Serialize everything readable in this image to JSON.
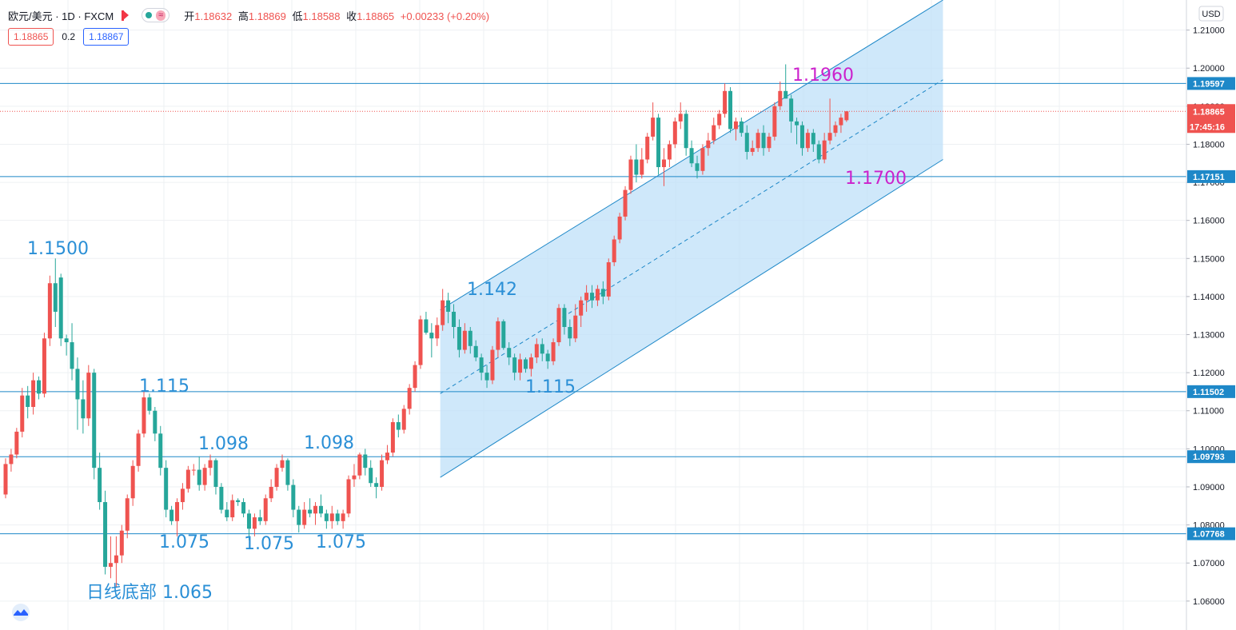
{
  "header": {
    "symbol": "欧元/美元 · 1D · FXCM",
    "open_label": "开",
    "open": "1.18632",
    "high_label": "高",
    "high": "1.18869",
    "low_label": "低",
    "low": "1.18588",
    "close_label": "收",
    "close": "1.18865",
    "change": "+0.00233 (+0.20%)"
  },
  "trade": {
    "sell": "1.18865",
    "spread": "0.2",
    "buy": "1.18867"
  },
  "currency": "USD",
  "colors": {
    "up": "#ef5350",
    "down": "#26a69a",
    "line": "#1e88c8",
    "channel_fill": "#bfe0f8",
    "purple": "#cc22cc",
    "blue_label": "#2a8fd6"
  },
  "chart_data": {
    "type": "candlestick",
    "ylim": [
      1.0524,
      1.2179
    ],
    "y_ticks": [
      "1.06000",
      "1.07000",
      "1.08000",
      "1.09000",
      "1.10000",
      "1.11000",
      "1.12000",
      "1.13000",
      "1.14000",
      "1.15000",
      "1.16000",
      "1.17000",
      "1.18000",
      "1.19000",
      "1.20000",
      "1.21000"
    ],
    "horizontal_lines": [
      {
        "value": 1.19597,
        "label": "1.19597"
      },
      {
        "value": 1.17151,
        "label": "1.17151"
      },
      {
        "value": 1.11502,
        "label": "1.11502"
      },
      {
        "value": 1.09793,
        "label": "1.09793"
      },
      {
        "value": 1.07768,
        "label": "1.07768"
      }
    ],
    "last_price": {
      "value": 1.18865,
      "label": "1.18865",
      "countdown": "17:45:16"
    },
    "annotations": [
      {
        "text": "1.1500",
        "color": "blue"
      },
      {
        "text": "1.115",
        "color": "blue"
      },
      {
        "text": "1.098",
        "color": "blue"
      },
      {
        "text": "1.098",
        "color": "blue"
      },
      {
        "text": "1.075",
        "color": "blue"
      },
      {
        "text": "1.075",
        "color": "blue"
      },
      {
        "text": "1.075",
        "color": "blue"
      },
      {
        "text": "日线底部 1.065",
        "color": "blue"
      },
      {
        "text": "1.142",
        "color": "blue"
      },
      {
        "text": "1.115",
        "color": "blue"
      },
      {
        "text": "1.1960",
        "color": "purple"
      },
      {
        "text": "1.1700",
        "color": "purple"
      }
    ],
    "channel": {
      "start_bar": 79,
      "end_bar": 169,
      "upper": [
        1.1365,
        1.2179
      ],
      "lower": [
        1.0925,
        1.176
      ]
    },
    "candles": [
      [
        1.088,
        1.0975,
        1.087,
        1.096
      ],
      [
        1.096,
        1.1,
        1.094,
        1.0985
      ],
      [
        1.0985,
        1.1055,
        1.0975,
        1.1045
      ],
      [
        1.1045,
        1.116,
        1.103,
        1.114
      ],
      [
        1.114,
        1.1165,
        1.108,
        1.111
      ],
      [
        1.111,
        1.12,
        1.109,
        1.118
      ],
      [
        1.118,
        1.119,
        1.113,
        1.1145
      ],
      [
        1.1145,
        1.1305,
        1.1135,
        1.129
      ],
      [
        1.129,
        1.1455,
        1.127,
        1.1435
      ],
      [
        1.1435,
        1.15,
        1.132,
        1.136
      ],
      [
        1.145,
        1.146,
        1.127,
        1.129
      ],
      [
        1.129,
        1.13,
        1.1245,
        1.128
      ],
      [
        1.128,
        1.133,
        1.118,
        1.121
      ],
      [
        1.121,
        1.124,
        1.105,
        1.113
      ],
      [
        1.113,
        1.118,
        1.104,
        1.108
      ],
      [
        1.108,
        1.122,
        1.106,
        1.12
      ],
      [
        1.12,
        1.121,
        1.092,
        1.095
      ],
      [
        1.095,
        1.099,
        1.084,
        1.086
      ],
      [
        1.086,
        1.089,
        1.067,
        1.069
      ],
      [
        1.069,
        1.077,
        1.066,
        1.07
      ],
      [
        1.07,
        1.077,
        1.0635,
        1.072
      ],
      [
        1.072,
        1.08,
        1.07,
        1.0785
      ],
      [
        1.0785,
        1.088,
        1.0765,
        1.087
      ],
      [
        1.087,
        1.097,
        1.085,
        1.0955
      ],
      [
        1.0955,
        1.105,
        1.094,
        1.104
      ],
      [
        1.104,
        1.115,
        1.103,
        1.1135
      ],
      [
        1.1135,
        1.1145,
        1.109,
        1.11
      ],
      [
        1.11,
        1.111,
        1.102,
        1.104
      ],
      [
        1.104,
        1.106,
        1.093,
        1.095
      ],
      [
        1.095,
        1.097,
        1.082,
        1.084
      ],
      [
        1.084,
        1.085,
        1.08,
        1.081
      ],
      [
        1.081,
        1.087,
        1.077,
        1.086
      ],
      [
        1.086,
        1.091,
        1.084,
        1.0895
      ],
      [
        1.0895,
        1.0955,
        1.0885,
        1.0945
      ],
      [
        1.0945,
        1.096,
        1.093,
        1.0945
      ],
      [
        1.0945,
        1.098,
        1.089,
        1.0905
      ],
      [
        1.0905,
        1.096,
        1.089,
        1.095
      ],
      [
        1.095,
        1.0985,
        1.093,
        1.097
      ],
      [
        1.097,
        1.0975,
        1.088,
        1.09
      ],
      [
        1.09,
        1.091,
        1.083,
        1.084
      ],
      [
        1.084,
        1.086,
        1.081,
        1.082
      ],
      [
        1.082,
        1.088,
        1.081,
        1.0865
      ],
      [
        1.0865,
        1.087,
        1.085,
        1.086
      ],
      [
        1.086,
        1.087,
        1.082,
        1.083
      ],
      [
        1.083,
        1.084,
        1.076,
        1.079
      ],
      [
        1.079,
        1.083,
        1.077,
        1.082
      ],
      [
        1.082,
        1.084,
        1.08,
        1.081
      ],
      [
        1.081,
        1.088,
        1.08,
        1.087
      ],
      [
        1.087,
        1.092,
        1.086,
        1.09
      ],
      [
        1.09,
        1.096,
        1.089,
        1.095
      ],
      [
        1.095,
        1.0985,
        1.094,
        1.097
      ],
      [
        1.097,
        1.0975,
        1.089,
        1.0905
      ],
      [
        1.0905,
        1.092,
        1.082,
        1.084
      ],
      [
        1.084,
        1.085,
        1.078,
        1.08
      ],
      [
        1.08,
        1.086,
        1.079,
        1.084
      ],
      [
        1.084,
        1.087,
        1.082,
        1.083
      ],
      [
        1.083,
        1.086,
        1.08,
        1.085
      ],
      [
        1.085,
        1.088,
        1.082,
        1.083
      ],
      [
        1.083,
        1.084,
        1.079,
        1.081
      ],
      [
        1.081,
        1.085,
        1.079,
        1.083
      ],
      [
        1.083,
        1.084,
        1.08,
        1.081
      ],
      [
        1.081,
        1.084,
        1.079,
        1.083
      ],
      [
        1.083,
        1.093,
        1.082,
        1.092
      ],
      [
        1.092,
        1.096,
        1.09,
        1.093
      ],
      [
        1.093,
        1.099,
        1.092,
        1.0985
      ],
      [
        1.0985,
        1.1,
        1.093,
        1.095
      ],
      [
        1.095,
        1.097,
        1.09,
        1.091
      ],
      [
        1.091,
        1.0925,
        1.087,
        1.09
      ],
      [
        1.09,
        1.0985,
        1.089,
        1.097
      ],
      [
        1.097,
        1.101,
        1.096,
        1.099
      ],
      [
        1.099,
        1.108,
        1.098,
        1.107
      ],
      [
        1.107,
        1.109,
        1.103,
        1.105
      ],
      [
        1.105,
        1.1115,
        1.104,
        1.1105
      ],
      [
        1.1105,
        1.117,
        1.109,
        1.116
      ],
      [
        1.116,
        1.123,
        1.115,
        1.122
      ],
      [
        1.122,
        1.135,
        1.121,
        1.134
      ],
      [
        1.134,
        1.136,
        1.13,
        1.1305
      ],
      [
        1.1305,
        1.133,
        1.124,
        1.129
      ],
      [
        1.129,
        1.1345,
        1.127,
        1.1325
      ],
      [
        1.1325,
        1.142,
        1.131,
        1.139
      ],
      [
        1.139,
        1.141,
        1.133,
        1.136
      ],
      [
        1.136,
        1.138,
        1.129,
        1.132
      ],
      [
        1.132,
        1.134,
        1.124,
        1.126
      ],
      [
        1.126,
        1.133,
        1.125,
        1.131
      ],
      [
        1.131,
        1.132,
        1.125,
        1.127
      ],
      [
        1.127,
        1.1285,
        1.123,
        1.124
      ],
      [
        1.124,
        1.125,
        1.118,
        1.12
      ],
      [
        1.12,
        1.122,
        1.116,
        1.118
      ],
      [
        1.118,
        1.127,
        1.117,
        1.126
      ],
      [
        1.126,
        1.1345,
        1.124,
        1.1335
      ],
      [
        1.1335,
        1.134,
        1.126,
        1.1265
      ],
      [
        1.1265,
        1.128,
        1.122,
        1.124
      ],
      [
        1.124,
        1.125,
        1.118,
        1.12
      ],
      [
        1.12,
        1.125,
        1.118,
        1.1235
      ],
      [
        1.1235,
        1.124,
        1.12,
        1.121
      ],
      [
        1.121,
        1.125,
        1.119,
        1.124
      ],
      [
        1.124,
        1.129,
        1.1225,
        1.1275
      ],
      [
        1.1275,
        1.129,
        1.123,
        1.125
      ],
      [
        1.125,
        1.126,
        1.121,
        1.123
      ],
      [
        1.123,
        1.129,
        1.122,
        1.128
      ],
      [
        1.128,
        1.138,
        1.127,
        1.137
      ],
      [
        1.137,
        1.138,
        1.13,
        1.132
      ],
      [
        1.132,
        1.134,
        1.127,
        1.129
      ],
      [
        1.129,
        1.138,
        1.128,
        1.135
      ],
      [
        1.135,
        1.14,
        1.132,
        1.139
      ],
      [
        1.139,
        1.143,
        1.136,
        1.141
      ],
      [
        1.141,
        1.143,
        1.137,
        1.139
      ],
      [
        1.139,
        1.143,
        1.1375,
        1.142
      ],
      [
        1.142,
        1.144,
        1.138,
        1.14
      ],
      [
        1.14,
        1.15,
        1.139,
        1.149
      ],
      [
        1.149,
        1.156,
        1.148,
        1.155
      ],
      [
        1.155,
        1.162,
        1.154,
        1.161
      ],
      [
        1.161,
        1.169,
        1.16,
        1.168
      ],
      [
        1.168,
        1.177,
        1.167,
        1.176
      ],
      [
        1.176,
        1.18,
        1.17,
        1.172
      ],
      [
        1.172,
        1.179,
        1.171,
        1.176
      ],
      [
        1.176,
        1.183,
        1.175,
        1.182
      ],
      [
        1.182,
        1.191,
        1.181,
        1.187
      ],
      [
        1.187,
        1.188,
        1.172,
        1.174
      ],
      [
        1.174,
        1.179,
        1.169,
        1.176
      ],
      [
        1.176,
        1.181,
        1.174,
        1.18
      ],
      [
        1.18,
        1.187,
        1.179,
        1.186
      ],
      [
        1.186,
        1.191,
        1.184,
        1.188
      ],
      [
        1.188,
        1.189,
        1.177,
        1.179
      ],
      [
        1.179,
        1.181,
        1.174,
        1.175
      ],
      [
        1.175,
        1.177,
        1.171,
        1.173
      ],
      [
        1.173,
        1.18,
        1.172,
        1.179
      ],
      [
        1.179,
        1.183,
        1.177,
        1.181
      ],
      [
        1.181,
        1.187,
        1.18,
        1.185
      ],
      [
        1.185,
        1.189,
        1.184,
        1.188
      ],
      [
        1.188,
        1.196,
        1.187,
        1.194
      ],
      [
        1.194,
        1.195,
        1.183,
        1.184
      ],
      [
        1.184,
        1.187,
        1.181,
        1.186
      ],
      [
        1.186,
        1.187,
        1.182,
        1.183
      ],
      [
        1.183,
        1.185,
        1.176,
        1.178
      ],
      [
        1.178,
        1.181,
        1.177,
        1.179
      ],
      [
        1.179,
        1.184,
        1.178,
        1.183
      ],
      [
        1.183,
        1.185,
        1.177,
        1.179
      ],
      [
        1.179,
        1.183,
        1.178,
        1.182
      ],
      [
        1.182,
        1.191,
        1.181,
        1.19
      ],
      [
        1.19,
        1.1965,
        1.189,
        1.194
      ],
      [
        1.194,
        1.201,
        1.192,
        1.192
      ],
      [
        1.192,
        1.193,
        1.183,
        1.186
      ],
      [
        1.186,
        1.187,
        1.18,
        1.185
      ],
      [
        1.185,
        1.186,
        1.177,
        1.179
      ],
      [
        1.179,
        1.184,
        1.178,
        1.183
      ],
      [
        1.183,
        1.184,
        1.178,
        1.18
      ],
      [
        1.18,
        1.181,
        1.175,
        1.176
      ],
      [
        1.176,
        1.183,
        1.175,
        1.181
      ],
      [
        1.181,
        1.192,
        1.18,
        1.183
      ],
      [
        1.183,
        1.186,
        1.182,
        1.185
      ],
      [
        1.185,
        1.188,
        1.183,
        1.187
      ],
      [
        1.18632,
        1.18869,
        1.18588,
        1.18865
      ]
    ]
  }
}
